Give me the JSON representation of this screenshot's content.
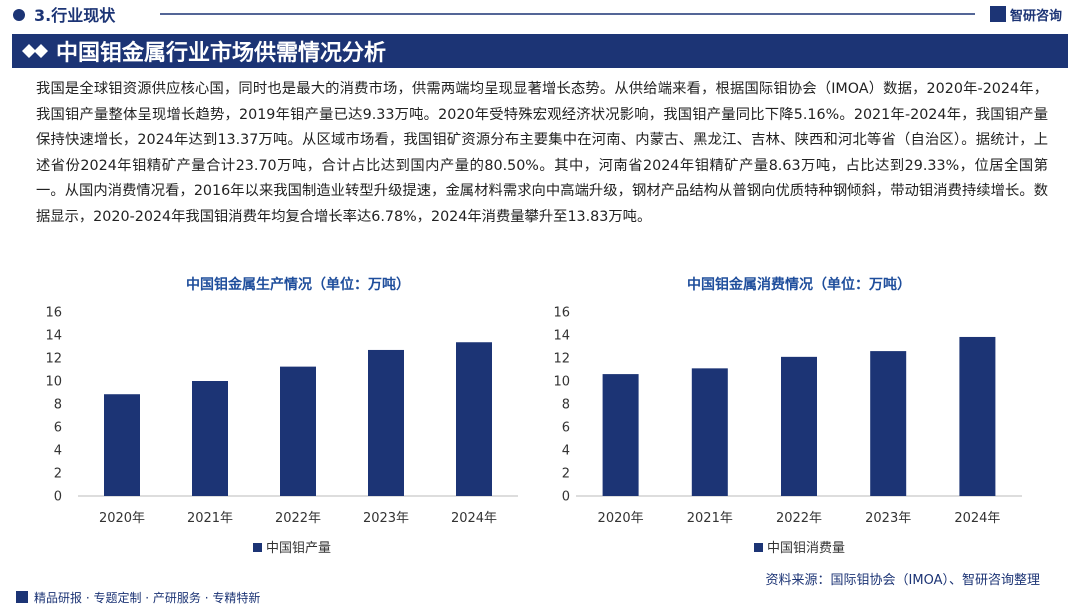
{
  "header": {
    "section": "3.行业现状",
    "brand": "智研咨询"
  },
  "title": "中国钼金属行业市场供需情况分析",
  "paragraph": "我国是全球钼资源供应核心国，同时也是最大的消费市场，供需两端均呈现显著增长态势。从供给端来看，根据国际钼协会（IMOA）数据，2020年-2024年，我国钼产量整体呈现增长趋势，2019年钼产量已达9.33万吨。2020年受特殊宏观经济状况影响，我国钼产量同比下降5.16%。2021年-2024年，我国钼产量保持快速增长，2024年达到13.37万吨。从区域市场看，我国钼矿资源分布主要集中在河南、内蒙古、黑龙江、吉林、陕西和河北等省（自治区）。据统计，上述省份2024年钼精矿产量合计23.70万吨，合计占比达到国内产量的80.50%。其中，河南省2024年钼精矿产量8.63万吨，占比达到29.33%，位居全国第一。从国内消费情况看，2016年以来我国制造业转型升级提速，金属材料需求向中高端升级，钢材产品结构从普钢向优质特种钢倾斜，带动钼消费持续增长。数据显示，2020-2024年我国钼消费年均复合增长率达6.78%，2024年消费量攀升至13.83万吨。",
  "chart_data": [
    {
      "type": "bar",
      "title": "中国钼金属生产情况（单位：万吨）",
      "categories": [
        "2020年",
        "2021年",
        "2022年",
        "2023年",
        "2024年"
      ],
      "series": [
        {
          "name": "中国钼产量",
          "color": "#1c3475",
          "values": [
            8.85,
            10.0,
            11.25,
            12.7,
            13.37
          ]
        }
      ],
      "ylim": [
        0,
        16
      ],
      "yticks": [
        0,
        2,
        4,
        6,
        8,
        10,
        12,
        14,
        16
      ],
      "grid": false
    },
    {
      "type": "bar",
      "title": "中国钼金属消费情况（单位：万吨）",
      "categories": [
        "2020年",
        "2021年",
        "2022年",
        "2023年",
        "2024年"
      ],
      "series": [
        {
          "name": "中国钼消费量",
          "color": "#1c3475",
          "values": [
            10.6,
            11.1,
            12.1,
            12.6,
            13.83
          ]
        }
      ],
      "ylim": [
        0,
        16
      ],
      "yticks": [
        0,
        2,
        4,
        6,
        8,
        10,
        12,
        14,
        16
      ],
      "grid": false
    }
  ],
  "source": "资料来源：国际钼协会（IMOA）、智研咨询整理",
  "footer": "精品研报 · 专题定制 · 产研服务 · 专精特新"
}
